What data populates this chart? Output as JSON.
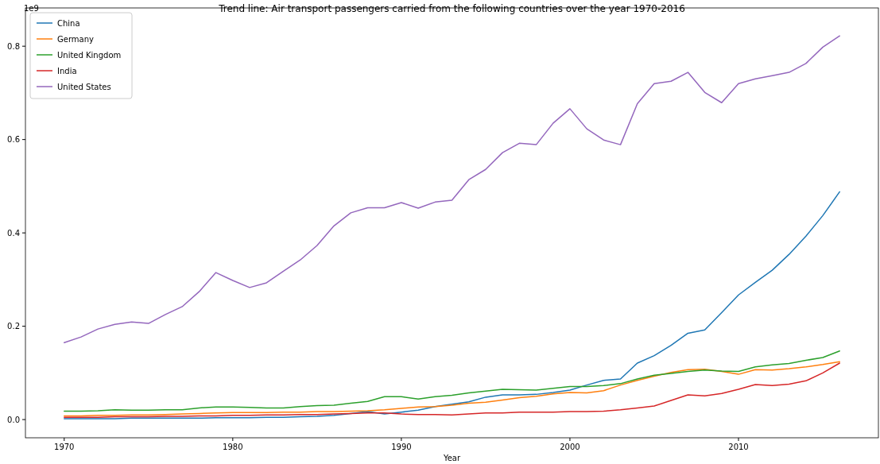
{
  "chart_data": {
    "type": "line",
    "title": "Trend line: Air transport passengers carried from the following countries over the year 1970-2016",
    "xlabel": "Year",
    "annotations": [
      "1e9"
    ],
    "x": [
      1970,
      1971,
      1972,
      1973,
      1974,
      1975,
      1976,
      1977,
      1978,
      1979,
      1980,
      1981,
      1982,
      1983,
      1984,
      1985,
      1986,
      1987,
      1988,
      1989,
      1990,
      1991,
      1992,
      1993,
      1994,
      1995,
      1996,
      1997,
      1998,
      1999,
      2000,
      2001,
      2002,
      2003,
      2004,
      2005,
      2006,
      2007,
      2008,
      2009,
      2010,
      2011,
      2012,
      2013,
      2014,
      2015,
      2016
    ],
    "series": [
      {
        "name": "China",
        "color": "#1f77b4",
        "values": [
          0.002,
          0.002,
          0.002,
          0.002,
          0.003,
          0.003,
          0.003,
          0.003,
          0.003,
          0.004,
          0.004,
          0.004,
          0.005,
          0.005,
          0.006,
          0.007,
          0.009,
          0.013,
          0.017,
          0.012,
          0.016,
          0.02,
          0.028,
          0.033,
          0.038,
          0.048,
          0.053,
          0.053,
          0.054,
          0.058,
          0.063,
          0.074,
          0.084,
          0.087,
          0.121,
          0.137,
          0.159,
          0.185,
          0.192,
          0.229,
          0.267,
          0.294,
          0.32,
          0.354,
          0.393,
          0.437,
          0.488
        ]
      },
      {
        "name": "Germany",
        "color": "#ff7f0e",
        "values": [
          0.008,
          0.008,
          0.009,
          0.009,
          0.01,
          0.01,
          0.011,
          0.012,
          0.013,
          0.014,
          0.015,
          0.015,
          0.015,
          0.016,
          0.016,
          0.017,
          0.017,
          0.018,
          0.019,
          0.021,
          0.024,
          0.027,
          0.028,
          0.031,
          0.035,
          0.037,
          0.042,
          0.047,
          0.05,
          0.055,
          0.058,
          0.057,
          0.062,
          0.074,
          0.084,
          0.093,
          0.101,
          0.107,
          0.108,
          0.103,
          0.097,
          0.107,
          0.106,
          0.109,
          0.113,
          0.118,
          0.124
        ]
      },
      {
        "name": "United Kingdom",
        "color": "#2ca02c",
        "values": [
          0.018,
          0.018,
          0.019,
          0.021,
          0.02,
          0.02,
          0.021,
          0.021,
          0.025,
          0.027,
          0.027,
          0.026,
          0.025,
          0.025,
          0.028,
          0.03,
          0.031,
          0.035,
          0.039,
          0.049,
          0.049,
          0.044,
          0.049,
          0.052,
          0.057,
          0.061,
          0.065,
          0.064,
          0.063,
          0.067,
          0.071,
          0.071,
          0.073,
          0.077,
          0.087,
          0.095,
          0.099,
          0.103,
          0.106,
          0.104,
          0.103,
          0.113,
          0.117,
          0.12,
          0.127,
          0.133,
          0.147
        ]
      },
      {
        "name": "India",
        "color": "#d62728",
        "values": [
          0.005,
          0.005,
          0.005,
          0.006,
          0.006,
          0.006,
          0.007,
          0.007,
          0.008,
          0.008,
          0.009,
          0.009,
          0.01,
          0.01,
          0.011,
          0.011,
          0.012,
          0.013,
          0.014,
          0.014,
          0.012,
          0.011,
          0.011,
          0.01,
          0.012,
          0.014,
          0.014,
          0.016,
          0.016,
          0.016,
          0.017,
          0.017,
          0.018,
          0.021,
          0.025,
          0.029,
          0.041,
          0.053,
          0.051,
          0.056,
          0.065,
          0.075,
          0.073,
          0.076,
          0.083,
          0.1,
          0.121
        ]
      },
      {
        "name": "United States",
        "color": "#9467bd",
        "values": [
          0.165,
          0.177,
          0.194,
          0.204,
          0.209,
          0.206,
          0.225,
          0.242,
          0.274,
          0.315,
          0.298,
          0.283,
          0.293,
          0.318,
          0.342,
          0.373,
          0.415,
          0.443,
          0.454,
          0.454,
          0.465,
          0.453,
          0.466,
          0.47,
          0.514,
          0.536,
          0.572,
          0.592,
          0.589,
          0.635,
          0.666,
          0.623,
          0.599,
          0.589,
          0.677,
          0.72,
          0.725,
          0.744,
          0.701,
          0.679,
          0.72,
          0.73,
          0.737,
          0.744,
          0.763,
          0.798,
          0.822
        ]
      }
    ],
    "xlim": [
      1967.7,
      2018.3
    ],
    "xticks": [
      1970,
      1980,
      1990,
      2000,
      2010
    ],
    "ylim": [
      -0.039,
      0.882
    ],
    "yticks": [
      {
        "value": 0,
        "label": "0.0"
      },
      {
        "value": 0.2,
        "label": "0.2"
      },
      {
        "value": 0.4,
        "label": "0.4"
      },
      {
        "value": 0.6,
        "label": "0.6"
      },
      {
        "value": 0.8,
        "label": "0.8"
      }
    ],
    "grid": false,
    "legend": "top left",
    "marker": "none",
    "line_style": "solid"
  }
}
